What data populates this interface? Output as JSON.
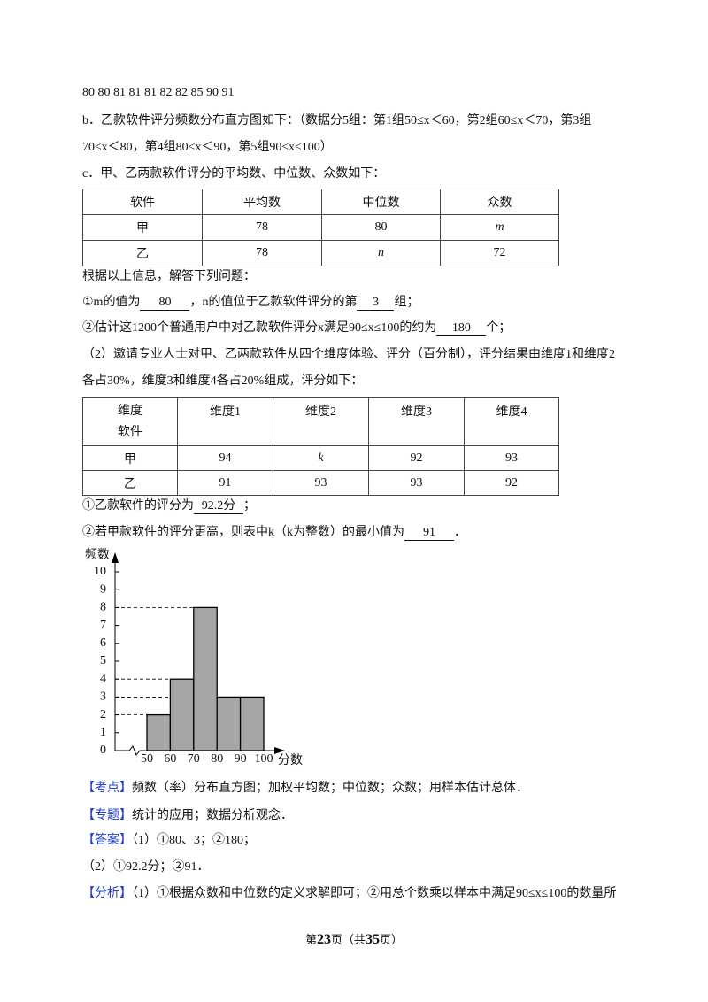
{
  "top_lines": [
    "80 80 81 81 81 82 82 85 90 91",
    "b．乙款软件评分频数分布直方图如下：（数据分5组：第1组50≤x＜60，第2组60≤x＜70，第3组",
    "70≤x＜80，第4组80≤x＜90，第5组90≤x≤100）",
    "c．甲、乙两款软件评分的平均数、中位数、众数如下："
  ],
  "table1": {
    "header": [
      "软件",
      "平均数",
      "中位数",
      "众数"
    ],
    "rows": [
      [
        "甲",
        78,
        80,
        "m"
      ],
      [
        "乙",
        78,
        "n",
        72
      ]
    ]
  },
  "intro": "根据以上信息，解答下列问题：",
  "q1_1": {
    "pre": "①m的值为",
    "a1": 80,
    "mid": "，n的值位于乙款软件评分的第",
    "a2": 3,
    "post": "组；"
  },
  "q1_2": {
    "pre": "②估计这1200个普通用户中对乙款软件评分x满足90≤x≤100的约为",
    "a": 180,
    "post": "个；"
  },
  "q2_lines": [
    "（2）邀请专业人士对甲、乙两款软件从四个维度体验、评分（百分制），评分结果由维度1和维度2",
    "各占30%，维度3和维度4各占20%组成，评分如下："
  ],
  "table2": {
    "corner_top": "维度",
    "corner_bottom": "软件",
    "header": [
      "维度1",
      "维度2",
      "维度3",
      "维度4"
    ],
    "rows": [
      {
        "name": "甲",
        "values": [
          94,
          "k",
          92,
          93
        ]
      },
      {
        "name": "乙",
        "values": [
          91,
          93,
          93,
          92
        ]
      }
    ]
  },
  "q2_1": {
    "pre": "①乙款软件的评分为",
    "a": "92.2分",
    "post": "；"
  },
  "q2_2": {
    "pre": "②若甲款软件的评分更高，则表中k（k为整数）的最小值为",
    "a": 91,
    "post": "．"
  },
  "chart_data": {
    "type": "histogram",
    "ylabel": "频数",
    "xlabel": "分数",
    "bins": [
      50,
      60,
      70,
      80,
      90,
      100
    ],
    "values": [
      2,
      4,
      8,
      3,
      3
    ],
    "color": "#a6a6a6",
    "ylim": [
      0,
      10
    ],
    "yticks": [
      0,
      1,
      2,
      3,
      4,
      5,
      6,
      7,
      8,
      9,
      10
    ],
    "xticks": [
      50,
      60,
      70,
      80,
      90,
      100
    ]
  },
  "notes": [
    {
      "tag": "【考点】",
      "text": "频数（率）分布直方图；加权平均数；中位数；众数；用样本估计总体．"
    },
    {
      "tag": "【专题】",
      "text": "统计的应用；数据分析观念．"
    },
    {
      "tag": "【答案】",
      "text": "（1）①80、3；②180；"
    }
  ],
  "answer_line2": "（2）①92.2分；②91．",
  "analysis": {
    "tag": "【分析】",
    "text": "（1）①根据众数和中位数的定义求解即可；②用总个数乘以样本中满足90≤x≤100的数量所"
  },
  "footer": {
    "pre": "第",
    "page": 23,
    "mid": "页（共",
    "total": 35,
    "post": "页）"
  }
}
